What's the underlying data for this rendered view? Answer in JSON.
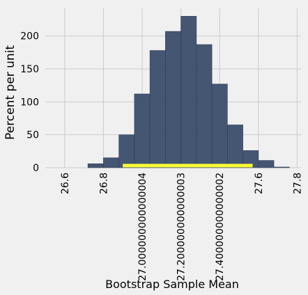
{
  "chart_data": {
    "type": "bar",
    "title": "",
    "xlabel": "Bootstrap Sample Mean",
    "ylabel": "Percent per unit",
    "xlim": [
      26.5,
      27.82
    ],
    "ylim": [
      0,
      242
    ],
    "grid": true,
    "x_ticks": [
      26.6,
      26.8,
      27.0,
      27.2,
      27.4,
      27.6,
      27.8
    ],
    "x_tick_labels": [
      "26.6",
      "26.8",
      "27.000000000000004",
      "27.200000000000003",
      "27.400000000000002",
      "27.6",
      "27.8"
    ],
    "y_ticks": [
      0,
      50,
      100,
      150,
      200
    ],
    "y_tick_labels": [
      "0",
      "50",
      "100",
      "150",
      "200"
    ],
    "bin_edges": [
      26.72,
      26.8,
      26.88,
      26.96,
      27.04,
      27.12,
      27.2,
      27.28,
      27.36,
      27.44,
      27.52,
      27.6,
      27.68,
      27.76
    ],
    "values": [
      6,
      15,
      50,
      112,
      178,
      207,
      230,
      187,
      127,
      65,
      26,
      11,
      1
    ],
    "bar_color": "#3b4d6b",
    "interval": {
      "start": 26.9,
      "end": 27.57,
      "color": "#ffff33"
    }
  }
}
